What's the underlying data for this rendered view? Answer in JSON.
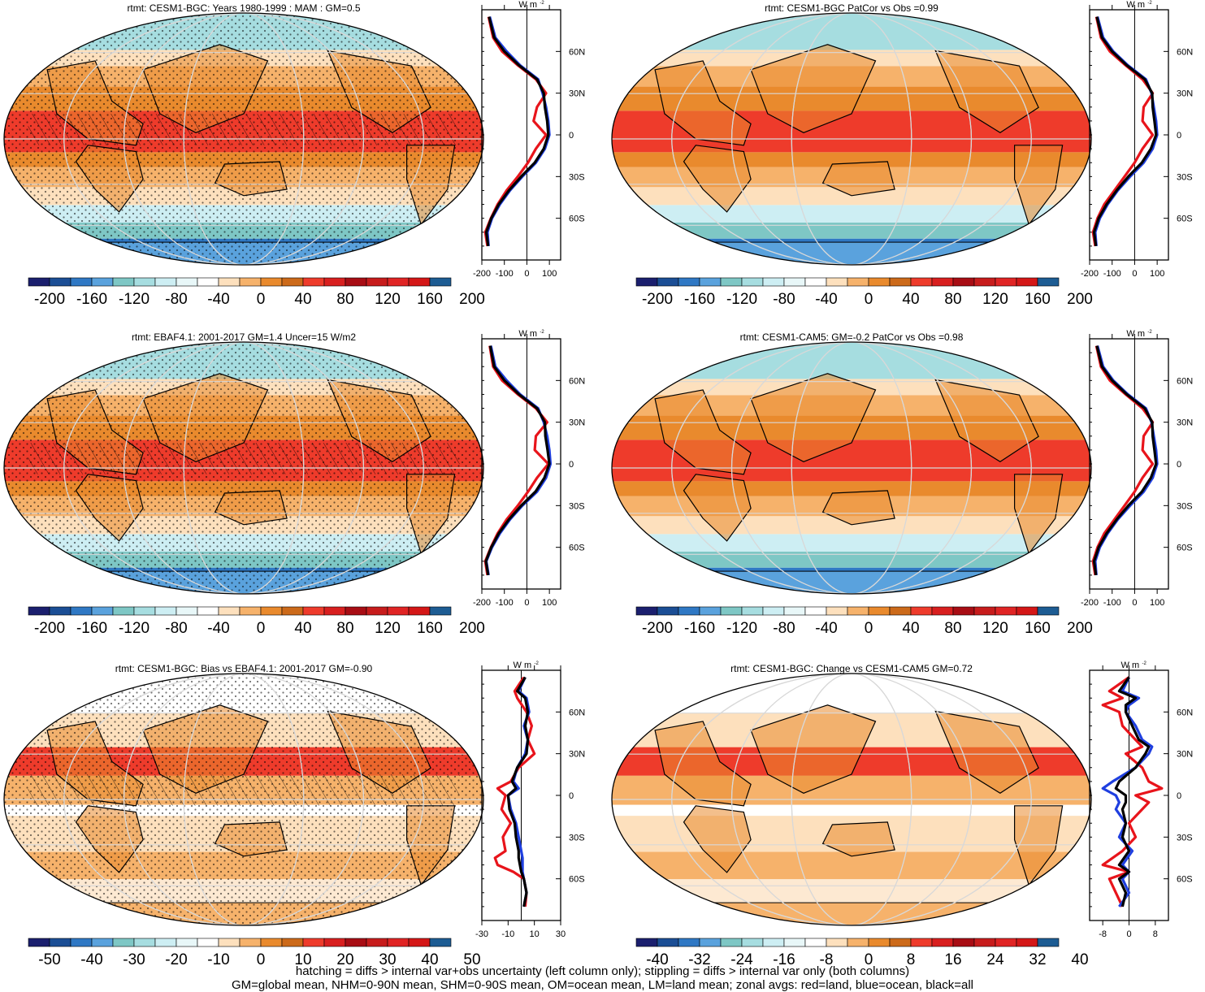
{
  "footnote": {
    "line1": "hatching = diffs > internal var+obs uncertainty (left column only); stippling = diffs > internal var only (both columns)",
    "line2": "GM=global mean, NHM=0-90N mean, SHM=0-90S mean, OM=ocean mean, LM=land mean; zonal avgs: red=land, blue=ocean, black=all"
  },
  "colors": {
    "land_series": "#e8141b",
    "ocean_series": "#1f3fe0",
    "all_series": "#000000",
    "ocean_background": "#f5c89a"
  },
  "colorbars": {
    "full": {
      "colors": [
        "#1b1f6e",
        "#1b4e95",
        "#2f78c4",
        "#5aa2dd",
        "#7ec7c5",
        "#a6dde0",
        "#cdeef3",
        "#e8f7f8",
        "#ffffff",
        "#fde0bd",
        "#f6b26b",
        "#e98a2d",
        "#cc6a1a",
        "#ee3b2b",
        "#d81f1f",
        "#a80d14",
        "#c71c1c",
        "#e02424",
        "#d41717",
        "#1d5c93"
      ],
      "labels": [
        "-200",
        "-160",
        "-120",
        "-80",
        "-40",
        "0",
        "40",
        "80",
        "120",
        "160",
        "200"
      ]
    },
    "bias": {
      "colors": [
        "#1b1f6e",
        "#1b4e95",
        "#2f78c4",
        "#5aa2dd",
        "#7ec7c5",
        "#a6dde0",
        "#cdeef3",
        "#e8f7f8",
        "#ffffff",
        "#fde0bd",
        "#f6b26b",
        "#e98a2d",
        "#cc6a1a",
        "#ee3b2b",
        "#d81f1f",
        "#a80d14",
        "#c71c1c",
        "#e02424",
        "#d41717",
        "#1d5c93"
      ],
      "labels": [
        "-50",
        "-40",
        "-30",
        "-20",
        "-10",
        "0",
        "10",
        "20",
        "30",
        "40",
        "50"
      ]
    },
    "change": {
      "colors": [
        "#1b1f6e",
        "#1b4e95",
        "#2f78c4",
        "#5aa2dd",
        "#7ec7c5",
        "#a6dde0",
        "#cdeef3",
        "#e8f7f8",
        "#ffffff",
        "#fde0bd",
        "#f6b26b",
        "#e98a2d",
        "#cc6a1a",
        "#ee3b2b",
        "#d81f1f",
        "#a80d14",
        "#c71c1c",
        "#e02424",
        "#d41717",
        "#1d5c93"
      ],
      "labels": [
        "-40",
        "-32",
        "-24",
        "-16",
        "-8",
        "0",
        "8",
        "16",
        "24",
        "32",
        "40"
      ]
    }
  },
  "panels": [
    {
      "title": "rtmt: CESM1-BGC: Years 1980-1999 : MAM : GM=0.5",
      "stipple": true,
      "hatch": true
    },
    {
      "title": "rtmt: CESM1-BGC PatCor vs Obs =0.99",
      "stipple": false,
      "hatch": false
    },
    {
      "title": "rtmt: EBAF4.1: 2001-2017 GM=1.4 Uncer=15 W/m2",
      "stipple": true,
      "hatch": true
    },
    {
      "title": "rtmt: CESM1-CAM5: GM=-0.2 PatCor vs Obs =0.98",
      "stipple": false,
      "hatch": false
    },
    {
      "title": "rtmt: CESM1-BGC: Bias vs EBAF4.1: 2001-2017 GM=-0.90",
      "stipple": true,
      "hatch": true
    },
    {
      "title": "rtmt: CESM1-BGC: Change vs CESM1-CAM5 GM=0.72",
      "stipple": false,
      "hatch": false
    }
  ],
  "zonal_units": "W m",
  "zonal_units_sup": "-2",
  "lat_labels": [
    "60N",
    "30N",
    "0",
    "30S",
    "60S"
  ],
  "chart_data": [
    {
      "type": "line",
      "title": "rtmt: CESM1-BGC: Years 1980-1999 : MAM : GM=0.5",
      "xlabel": "W m-2",
      "ylabel": "",
      "xlim": [
        -200,
        150
      ],
      "ylim": [
        -90,
        90
      ],
      "xticks": [
        "-200",
        "-100",
        "0",
        "100"
      ],
      "yticks": [
        "60N",
        "30N",
        "0",
        "30S",
        "60S"
      ],
      "legend": "none",
      "series": [
        {
          "lat": [
            85,
            70,
            60,
            50,
            40,
            30,
            20,
            10,
            0,
            -10,
            -20,
            -30,
            -40,
            -50,
            -60,
            -70,
            -80
          ],
          "values": [
            -170,
            -150,
            -110,
            -40,
            40,
            85,
            45,
            30,
            85,
            40,
            5,
            -40,
            -90,
            -130,
            -160,
            -185,
            -175
          ]
        },
        {
          "lat": [
            85,
            70,
            60,
            50,
            40,
            30,
            20,
            10,
            0,
            -10,
            -20,
            -30,
            -40,
            -50,
            -60,
            -70,
            -80
          ],
          "values": [
            -165,
            -140,
            -90,
            -30,
            50,
            70,
            85,
            95,
            100,
            80,
            40,
            -20,
            -75,
            -120,
            -155,
            -175,
            -170
          ]
        },
        {
          "lat": [
            85,
            70,
            60,
            50,
            40,
            30,
            20,
            10,
            0,
            -10,
            -20,
            -30,
            -40,
            -50,
            -60,
            -70,
            -80
          ],
          "values": [
            -168,
            -145,
            -100,
            -35,
            45,
            75,
            80,
            90,
            95,
            75,
            35,
            -25,
            -80,
            -125,
            -158,
            -180,
            -172
          ]
        }
      ]
    },
    {
      "type": "line",
      "title": "rtmt: CESM1-BGC PatCor vs Obs =0.99",
      "xlabel": "W m-2",
      "ylabel": "",
      "xlim": [
        -200,
        150
      ],
      "ylim": [
        -90,
        90
      ],
      "xticks": [
        "-200",
        "-100",
        "0",
        "100"
      ],
      "yticks": [
        "60N",
        "30N",
        "0",
        "30S",
        "60S"
      ],
      "legend": "none",
      "series": [
        {
          "lat": [
            85,
            70,
            60,
            50,
            40,
            30,
            20,
            10,
            0,
            -10,
            -20,
            -30,
            -40,
            -50,
            -60,
            -70,
            -80
          ],
          "values": [
            -170,
            -150,
            -110,
            -40,
            35,
            80,
            40,
            35,
            80,
            35,
            0,
            -45,
            -90,
            -135,
            -165,
            -185,
            -175
          ]
        },
        {
          "lat": [
            85,
            70,
            60,
            50,
            40,
            30,
            20,
            10,
            0,
            -10,
            -20,
            -30,
            -40,
            -50,
            -60,
            -70,
            -80
          ],
          "values": [
            -165,
            -140,
            -95,
            -30,
            50,
            75,
            85,
            95,
            100,
            80,
            40,
            -20,
            -75,
            -120,
            -155,
            -175,
            -170
          ]
        },
        {
          "lat": [
            85,
            70,
            60,
            50,
            40,
            30,
            20,
            10,
            0,
            -10,
            -20,
            -30,
            -40,
            -50,
            -60,
            -70,
            -80
          ],
          "values": [
            -168,
            -145,
            -100,
            -35,
            45,
            78,
            80,
            88,
            95,
            72,
            32,
            -28,
            -80,
            -125,
            -160,
            -180,
            -172
          ]
        }
      ]
    },
    {
      "type": "line",
      "title": "rtmt: EBAF4.1: 2001-2017 GM=1.4 Uncer=15 W/m2",
      "xlabel": "W m-2",
      "ylabel": "",
      "xlim": [
        -200,
        150
      ],
      "ylim": [
        -90,
        90
      ],
      "xticks": [
        "-200",
        "-100",
        "0",
        "100"
      ],
      "yticks": [
        "60N",
        "30N",
        "0",
        "30S",
        "60S"
      ],
      "legend": "none",
      "series": [
        {
          "lat": [
            85,
            70,
            60,
            50,
            40,
            30,
            20,
            10,
            0,
            -10,
            -20,
            -30,
            -40,
            -50,
            -60,
            -70,
            -80
          ],
          "values": [
            -165,
            -150,
            -110,
            -40,
            40,
            90,
            40,
            35,
            95,
            45,
            5,
            -40,
            -90,
            -130,
            -160,
            -185,
            -175
          ]
        },
        {
          "lat": [
            85,
            70,
            60,
            50,
            40,
            30,
            20,
            10,
            0,
            -10,
            -20,
            -30,
            -40,
            -50,
            -60,
            -70,
            -80
          ],
          "values": [
            -160,
            -140,
            -90,
            -30,
            50,
            75,
            90,
            100,
            105,
            85,
            45,
            -20,
            -75,
            -120,
            -155,
            -180,
            -170
          ]
        },
        {
          "lat": [
            85,
            70,
            60,
            50,
            40,
            30,
            20,
            10,
            0,
            -10,
            -20,
            -30,
            -40,
            -50,
            -60,
            -70,
            -80
          ],
          "values": [
            -163,
            -145,
            -100,
            -35,
            45,
            80,
            82,
            92,
            100,
            78,
            38,
            -25,
            -80,
            -125,
            -158,
            -182,
            -172
          ]
        }
      ]
    },
    {
      "type": "line",
      "title": "rtmt: CESM1-CAM5: GM=-0.2 PatCor vs Obs =0.98",
      "xlabel": "W m-2",
      "ylabel": "",
      "xlim": [
        -200,
        150
      ],
      "ylim": [
        -90,
        90
      ],
      "xticks": [
        "-200",
        "-100",
        "0",
        "100"
      ],
      "yticks": [
        "60N",
        "30N",
        "0",
        "30S",
        "60S"
      ],
      "legend": "none",
      "series": [
        {
          "lat": [
            85,
            70,
            60,
            50,
            40,
            30,
            20,
            10,
            0,
            -10,
            -20,
            -30,
            -40,
            -50,
            -60,
            -70,
            -80
          ],
          "values": [
            -170,
            -150,
            -110,
            -40,
            35,
            80,
            40,
            35,
            80,
            35,
            0,
            -45,
            -90,
            -135,
            -165,
            -185,
            -175
          ]
        },
        {
          "lat": [
            85,
            70,
            60,
            50,
            40,
            30,
            20,
            10,
            0,
            -10,
            -20,
            -30,
            -40,
            -50,
            -60,
            -70,
            -80
          ],
          "values": [
            -165,
            -140,
            -95,
            -30,
            50,
            75,
            85,
            95,
            100,
            80,
            40,
            -20,
            -75,
            -120,
            -155,
            -175,
            -170
          ]
        },
        {
          "lat": [
            85,
            70,
            60,
            50,
            40,
            30,
            20,
            10,
            0,
            -10,
            -20,
            -30,
            -40,
            -50,
            -60,
            -70,
            -80
          ],
          "values": [
            -168,
            -145,
            -100,
            -35,
            45,
            78,
            80,
            88,
            95,
            72,
            32,
            -28,
            -80,
            -125,
            -160,
            -180,
            -172
          ]
        }
      ]
    },
    {
      "type": "line",
      "title": "rtmt: CESM1-BGC: Bias vs EBAF4.1: 2001-2017 GM=-0.90",
      "xlabel": "W m-2",
      "ylabel": "",
      "xlim": [
        -30,
        30
      ],
      "ylim": [
        -90,
        90
      ],
      "xticks": [
        "-30",
        "-10",
        "10",
        "30"
      ],
      "yticks": [
        "60N",
        "30N",
        "0",
        "30S",
        "60S"
      ],
      "legend": "none",
      "series": [
        {
          "lat": [
            85,
            75,
            70,
            60,
            50,
            40,
            30,
            20,
            10,
            5,
            0,
            -10,
            -20,
            -30,
            -40,
            -45,
            -50,
            -55,
            -60,
            -70,
            -80
          ],
          "values": [
            2,
            -5,
            -3,
            4,
            8,
            5,
            10,
            -2,
            -8,
            -18,
            -12,
            -15,
            -8,
            -14,
            -12,
            -20,
            -18,
            -6,
            2,
            4,
            3
          ]
        },
        {
          "lat": [
            85,
            75,
            70,
            60,
            50,
            40,
            30,
            20,
            10,
            5,
            0,
            -10,
            -20,
            -30,
            -40,
            -45,
            -50,
            -55,
            -60,
            -70,
            -80
          ],
          "values": [
            3,
            -2,
            4,
            6,
            2,
            5,
            3,
            -3,
            -6,
            -2,
            -10,
            -8,
            -4,
            -2,
            0,
            1,
            1,
            1,
            2,
            4,
            2
          ]
        },
        {
          "lat": [
            85,
            75,
            70,
            60,
            50,
            40,
            30,
            20,
            10,
            5,
            0,
            -10,
            -20,
            -30,
            -40,
            -45,
            -50,
            -55,
            -60,
            -70,
            -80
          ],
          "values": [
            3,
            -3,
            3,
            5,
            3,
            5,
            4,
            -3,
            -7,
            -4,
            -10,
            -9,
            -5,
            -4,
            -2,
            -2,
            -1,
            0,
            2,
            4,
            2
          ]
        }
      ]
    },
    {
      "type": "line",
      "title": "rtmt: CESM1-BGC: Change vs CESM1-CAM5 GM=0.72",
      "xlabel": "W m-2",
      "ylabel": "",
      "xlim": [
        -12,
        12
      ],
      "ylim": [
        -90,
        90
      ],
      "xticks": [
        "-8",
        "0",
        "8"
      ],
      "yticks": [
        "60N",
        "30N",
        "0",
        "30S",
        "60S"
      ],
      "legend": "none",
      "series": [
        {
          "lat": [
            85,
            75,
            70,
            65,
            60,
            50,
            40,
            35,
            30,
            20,
            10,
            5,
            0,
            -5,
            -10,
            -20,
            -30,
            -40,
            -50,
            -55,
            -60,
            -70,
            -80
          ],
          "values": [
            0,
            -6,
            -2,
            -8,
            -3,
            -2,
            2,
            4,
            -1,
            4,
            6,
            10,
            2,
            6,
            4,
            0,
            2,
            -2,
            -8,
            0,
            -6,
            -4,
            -2
          ]
        },
        {
          "lat": [
            85,
            75,
            70,
            65,
            60,
            50,
            40,
            35,
            30,
            20,
            10,
            5,
            0,
            -5,
            -10,
            -20,
            -30,
            -40,
            -50,
            -55,
            -60,
            -70,
            -80
          ],
          "values": [
            0,
            -2,
            3,
            0,
            -1,
            2,
            4,
            7,
            6,
            2,
            -5,
            -8,
            -4,
            -3,
            -4,
            -1,
            -3,
            1,
            -2,
            0,
            -2,
            0,
            -3
          ]
        },
        {
          "lat": [
            85,
            75,
            70,
            65,
            60,
            50,
            40,
            35,
            30,
            20,
            10,
            5,
            0,
            -5,
            -10,
            -20,
            -30,
            -40,
            -50,
            -55,
            -60,
            -70,
            -80
          ],
          "values": [
            0,
            -3,
            2,
            -1,
            -1,
            1,
            3,
            6,
            5,
            2,
            -3,
            -4,
            -1,
            -1,
            -2,
            -1,
            -2,
            0,
            -3,
            0,
            -3,
            -1,
            -2
          ]
        }
      ]
    }
  ]
}
